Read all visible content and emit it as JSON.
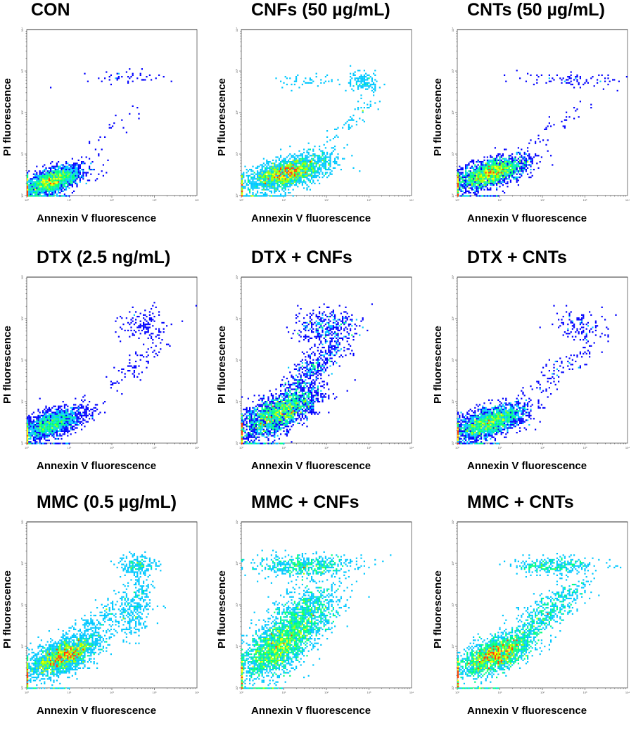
{
  "figure": {
    "xlabel": "Annexin V fluorescence",
    "ylabel": "PI fluorescence",
    "colormap": [
      "#0000ff",
      "#00c8ff",
      "#00ff80",
      "#a0ff00",
      "#ffff00",
      "#ff4000"
    ]
  },
  "chart_data": [
    {
      "type": "scatter",
      "title": "CON",
      "xlabel": "Annexin V fluorescence",
      "ylabel": "PI fluorescence",
      "xscale": "log",
      "yscale": "log",
      "xlim": [
        1,
        10000
      ],
      "ylim": [
        1,
        10000
      ],
      "x_ticks": [
        "10⁰",
        "10¹",
        "10²",
        "10³",
        "10⁴"
      ],
      "y_ticks": [
        "10⁰",
        "10¹",
        "10²",
        "10³",
        "10⁴"
      ],
      "populations": [
        {
          "name": "live",
          "center_log": [
            0.6,
            0.35
          ],
          "spread_log": [
            0.35,
            0.18
          ],
          "corr": 0.6,
          "count": 2200,
          "peak": "red"
        },
        {
          "name": "necrotic-late",
          "center_log": [
            2.3,
            2.85
          ],
          "spread_log": [
            0.55,
            0.08
          ],
          "corr": 0,
          "count": 45,
          "peak": "cyan"
        },
        {
          "name": "diagonal-tail",
          "center_log": [
            1.9,
            1.5
          ],
          "spread_log": [
            0.5,
            0.45
          ],
          "corr": 0.9,
          "count": 25,
          "peak": "blue"
        }
      ]
    },
    {
      "type": "scatter",
      "title": "CNFs (50 µg/mL)",
      "xlabel": "Annexin V fluorescence",
      "ylabel": "PI fluorescence",
      "xscale": "log",
      "yscale": "log",
      "xlim": [
        1,
        10000
      ],
      "ylim": [
        1,
        10000
      ],
      "x_ticks": [
        "10⁰",
        "10¹",
        "10²",
        "10³",
        "10⁴"
      ],
      "y_ticks": [
        "10⁰",
        "10¹",
        "10²",
        "10³",
        "10⁴"
      ],
      "populations": [
        {
          "name": "live",
          "center_log": [
            1.1,
            0.55
          ],
          "spread_log": [
            0.5,
            0.22
          ],
          "corr": 0.6,
          "count": 2300,
          "peak": "red"
        },
        {
          "name": "late-apoptotic",
          "center_log": [
            2.85,
            2.75
          ],
          "spread_log": [
            0.2,
            0.12
          ],
          "corr": 0,
          "count": 140,
          "peak": "green"
        },
        {
          "name": "mid-cluster",
          "center_log": [
            1.4,
            2.75
          ],
          "spread_log": [
            0.45,
            0.08
          ],
          "corr": 0,
          "count": 45,
          "peak": "blue"
        },
        {
          "name": "diagonal-tail",
          "center_log": [
            2.6,
            1.8
          ],
          "spread_log": [
            0.35,
            0.3
          ],
          "corr": 0.9,
          "count": 60,
          "peak": "blue"
        }
      ]
    },
    {
      "type": "scatter",
      "title": "CNTs (50 µg/mL)",
      "xlabel": "Annexin V fluorescence",
      "ylabel": "PI fluorescence",
      "xscale": "log",
      "yscale": "log",
      "xlim": [
        1,
        10000
      ],
      "ylim": [
        1,
        10000
      ],
      "x_ticks": [
        "10⁰",
        "10¹",
        "10²",
        "10³",
        "10⁴"
      ],
      "y_ticks": [
        "10⁰",
        "10¹",
        "10²",
        "10³",
        "10⁴"
      ],
      "populations": [
        {
          "name": "live",
          "center_log": [
            0.8,
            0.55
          ],
          "spread_log": [
            0.42,
            0.2
          ],
          "corr": 0.6,
          "count": 2300,
          "peak": "red"
        },
        {
          "name": "late-apoptotic",
          "center_log": [
            2.6,
            2.8
          ],
          "spread_log": [
            0.55,
            0.08
          ],
          "corr": 0,
          "count": 80,
          "peak": "cyan"
        },
        {
          "name": "diagonal-tail",
          "center_log": [
            2.4,
            1.7
          ],
          "spread_log": [
            0.45,
            0.35
          ],
          "corr": 0.9,
          "count": 40,
          "peak": "blue"
        }
      ]
    },
    {
      "type": "scatter",
      "title": "DTX (2.5 ng/mL)",
      "xlabel": "Annexin V fluorescence",
      "ylabel": "PI fluorescence",
      "xscale": "log",
      "yscale": "log",
      "xlim": [
        1,
        10000
      ],
      "ylim": [
        1,
        10000
      ],
      "x_ticks": [
        "10⁰",
        "10¹",
        "10²",
        "10³",
        "10⁴"
      ],
      "y_ticks": [
        "10⁰",
        "10¹",
        "10²",
        "10³",
        "10⁴"
      ],
      "populations": [
        {
          "name": "live",
          "center_log": [
            0.55,
            0.45
          ],
          "spread_log": [
            0.38,
            0.2
          ],
          "corr": 0.6,
          "count": 2300,
          "peak": "red"
        },
        {
          "name": "late-apoptotic",
          "center_log": [
            2.75,
            2.85
          ],
          "spread_log": [
            0.3,
            0.18
          ],
          "corr": 0,
          "count": 120,
          "peak": "cyan"
        },
        {
          "name": "diagonal-tail",
          "center_log": [
            2.6,
            1.9
          ],
          "spread_log": [
            0.4,
            0.4
          ],
          "corr": 0.85,
          "count": 90,
          "peak": "blue"
        }
      ]
    },
    {
      "type": "scatter",
      "title": "DTX + CNFs",
      "xlabel": "Annexin V fluorescence",
      "ylabel": "PI fluorescence",
      "xscale": "log",
      "yscale": "log",
      "xlim": [
        1,
        10000
      ],
      "ylim": [
        1,
        10000
      ],
      "x_ticks": [
        "10⁰",
        "10¹",
        "10²",
        "10³",
        "10⁴"
      ],
      "y_ticks": [
        "10⁰",
        "10¹",
        "10²",
        "10³",
        "10⁴"
      ],
      "populations": [
        {
          "name": "live",
          "center_log": [
            0.85,
            0.7
          ],
          "spread_log": [
            0.45,
            0.3
          ],
          "corr": 0.65,
          "count": 2200,
          "peak": "green"
        },
        {
          "name": "late-apoptotic",
          "center_log": [
            2.0,
            2.8
          ],
          "spread_log": [
            0.35,
            0.2
          ],
          "corr": 0,
          "count": 350,
          "peak": "blue"
        },
        {
          "name": "diagonal-tail",
          "center_log": [
            1.7,
            1.8
          ],
          "spread_log": [
            0.45,
            0.45
          ],
          "corr": 0.85,
          "count": 500,
          "peak": "blue"
        }
      ]
    },
    {
      "type": "scatter",
      "title": "DTX + CNTs",
      "xlabel": "Annexin V fluorescence",
      "ylabel": "PI fluorescence",
      "xscale": "log",
      "yscale": "log",
      "xlim": [
        1,
        10000
      ],
      "ylim": [
        1,
        10000
      ],
      "x_ticks": [
        "10⁰",
        "10¹",
        "10²",
        "10³",
        "10⁴"
      ],
      "y_ticks": [
        "10⁰",
        "10¹",
        "10²",
        "10³",
        "10⁴"
      ],
      "populations": [
        {
          "name": "live",
          "center_log": [
            0.75,
            0.5
          ],
          "spread_log": [
            0.42,
            0.22
          ],
          "corr": 0.6,
          "count": 2300,
          "peak": "red"
        },
        {
          "name": "late-apoptotic",
          "center_log": [
            2.85,
            2.85
          ],
          "spread_log": [
            0.3,
            0.18
          ],
          "corr": 0,
          "count": 110,
          "peak": "cyan"
        },
        {
          "name": "diagonal-tail",
          "center_log": [
            2.5,
            1.8
          ],
          "spread_log": [
            0.45,
            0.4
          ],
          "corr": 0.85,
          "count": 110,
          "peak": "blue"
        }
      ]
    },
    {
      "type": "scatter",
      "title": "MMC (0.5 µg/mL)",
      "xlabel": "Annexin V fluorescence",
      "ylabel": "PI fluorescence",
      "xscale": "log",
      "yscale": "log",
      "xlim": [
        1,
        10000
      ],
      "ylim": [
        1,
        10000
      ],
      "x_ticks": [
        "10⁰",
        "10¹",
        "10²",
        "10³",
        "10⁴"
      ],
      "y_ticks": [
        "10⁰",
        "10¹",
        "10²",
        "10³",
        "10⁴"
      ],
      "populations": [
        {
          "name": "live",
          "center_log": [
            0.85,
            0.75
          ],
          "spread_log": [
            0.42,
            0.25
          ],
          "corr": 0.6,
          "count": 2200,
          "peak": "green"
        },
        {
          "name": "late-apoptotic",
          "center_log": [
            2.6,
            2.95
          ],
          "spread_log": [
            0.22,
            0.13
          ],
          "corr": 0,
          "count": 220,
          "peak": "cyan"
        },
        {
          "name": "early-apoptotic-arm",
          "center_log": [
            2.55,
            1.95
          ],
          "spread_log": [
            0.2,
            0.35
          ],
          "corr": 0.4,
          "count": 300,
          "peak": "blue"
        },
        {
          "name": "diagonal-tail",
          "center_log": [
            1.7,
            1.6
          ],
          "spread_log": [
            0.45,
            0.4
          ],
          "corr": 0.8,
          "count": 250,
          "peak": "blue"
        }
      ]
    },
    {
      "type": "scatter",
      "title": "MMC + CNFs",
      "xlabel": "Annexin V fluorescence",
      "ylabel": "PI fluorescence",
      "xscale": "log",
      "yscale": "log",
      "xlim": [
        1,
        10000
      ],
      "ylim": [
        1,
        10000
      ],
      "x_ticks": [
        "10⁰",
        "10¹",
        "10²",
        "10³",
        "10⁴"
      ],
      "y_ticks": [
        "10⁰",
        "10¹",
        "10²",
        "10³",
        "10⁴"
      ],
      "populations": [
        {
          "name": "live",
          "center_log": [
            0.85,
            0.95
          ],
          "spread_log": [
            0.45,
            0.38
          ],
          "corr": 0.6,
          "count": 2000,
          "peak": "green"
        },
        {
          "name": "late-apoptotic",
          "center_log": [
            1.5,
            2.95
          ],
          "spread_log": [
            0.6,
            0.13
          ],
          "corr": 0,
          "count": 550,
          "peak": "cyan"
        },
        {
          "name": "mid-population",
          "center_log": [
            1.5,
            1.8
          ],
          "spread_log": [
            0.45,
            0.35
          ],
          "corr": 0.5,
          "count": 900,
          "peak": "blue"
        }
      ]
    },
    {
      "type": "scatter",
      "title": "MMC + CNTs",
      "xlabel": "Annexin V fluorescence",
      "ylabel": "PI fluorescence",
      "xscale": "log",
      "yscale": "log",
      "xlim": [
        1,
        10000
      ],
      "ylim": [
        1,
        10000
      ],
      "x_ticks": [
        "10⁰",
        "10¹",
        "10²",
        "10³",
        "10⁴"
      ],
      "y_ticks": [
        "10⁰",
        "10¹",
        "10²",
        "10³",
        "10⁴"
      ],
      "populations": [
        {
          "name": "live",
          "center_log": [
            0.9,
            0.8
          ],
          "spread_log": [
            0.42,
            0.25
          ],
          "corr": 0.6,
          "count": 2100,
          "peak": "green"
        },
        {
          "name": "late-apoptotic",
          "center_log": [
            2.3,
            2.95
          ],
          "spread_log": [
            0.5,
            0.1
          ],
          "corr": 0,
          "count": 320,
          "peak": "cyan"
        },
        {
          "name": "diagonal-tail",
          "center_log": [
            2.1,
            1.8
          ],
          "spread_log": [
            0.45,
            0.4
          ],
          "corr": 0.8,
          "count": 550,
          "peak": "blue"
        }
      ]
    }
  ]
}
